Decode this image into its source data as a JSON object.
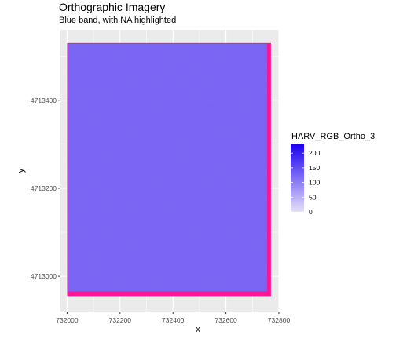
{
  "chart_data": {
    "type": "heatmap",
    "title": "Orthographic Imagery",
    "subtitle": "Blue band, with NA highlighted",
    "xlabel": "x",
    "ylabel": "y",
    "xlim": [
      731975,
      732800
    ],
    "ylim": [
      4712920,
      4713560
    ],
    "x_ticks": [
      732000,
      732200,
      732400,
      732600,
      732800
    ],
    "y_ticks": [
      4713000,
      4713200,
      4713400
    ],
    "na_color": "#ff1493",
    "panel_background": "#ebebeb",
    "grid": true,
    "raster_extent": {
      "xmin": 732000,
      "xmax": 732770,
      "ymin": 4712955,
      "ymax": 4713530
    },
    "legend": {
      "title": "HARV_RGB_Ortho_3",
      "position": "right",
      "breaks": [
        0,
        50,
        100,
        150,
        200
      ],
      "range": [
        0,
        230
      ],
      "low_color": "#e6e1f7",
      "high_color": "#1a00f0"
    },
    "typical_value": 125
  }
}
